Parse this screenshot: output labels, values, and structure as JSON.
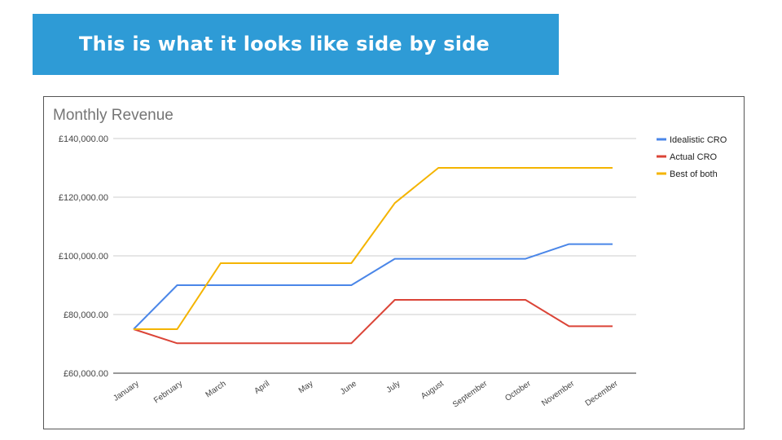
{
  "slide": {
    "title": "This is what it looks like side by side",
    "banner_color": "#2e9bd6"
  },
  "chart_data": {
    "type": "line",
    "title": "Monthly Revenue",
    "xlabel": "",
    "ylabel": "",
    "categories": [
      "January",
      "February",
      "March",
      "April",
      "May",
      "June",
      "July",
      "August",
      "September",
      "October",
      "November",
      "December"
    ],
    "ylim": [
      60000,
      140000
    ],
    "yticks": [
      60000,
      80000,
      100000,
      120000,
      140000
    ],
    "ytick_labels": [
      "£60,000.00",
      "£80,000.00",
      "£100,000.00",
      "£120,000.00",
      "£140,000.00"
    ],
    "grid": true,
    "legend_position": "right",
    "series": [
      {
        "name": "Idealistic CRO",
        "color": "#4a86e8",
        "values": [
          75000,
          90000,
          90000,
          90000,
          90000,
          90000,
          99000,
          99000,
          99000,
          99000,
          104000,
          104000
        ]
      },
      {
        "name": "Actual CRO",
        "color": "#db4437",
        "values": [
          75000,
          70200,
          70200,
          70200,
          70200,
          70200,
          85000,
          85000,
          85000,
          85000,
          76000,
          76000
        ]
      },
      {
        "name": "Best of both",
        "color": "#f4b400",
        "values": [
          75000,
          75000,
          97500,
          97500,
          97500,
          97500,
          118000,
          130000,
          130000,
          130000,
          130000,
          130000
        ]
      }
    ]
  }
}
